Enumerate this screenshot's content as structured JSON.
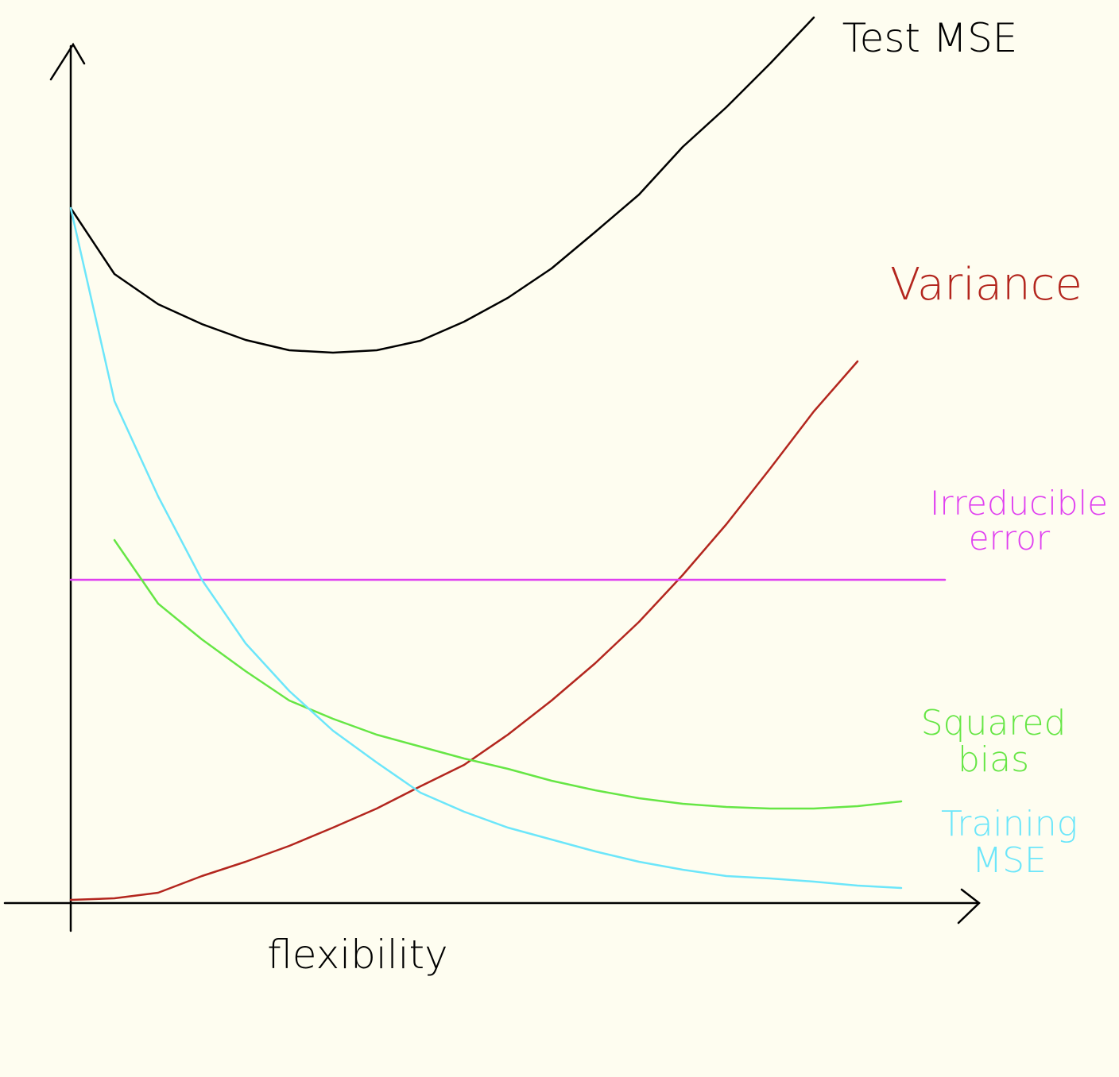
{
  "chart_data": {
    "type": "line",
    "x_label": "flexibility",
    "x": [
      0,
      0.5,
      1,
      1.5,
      2,
      2.5,
      3,
      3.5,
      4,
      4.5,
      5,
      5.5,
      6,
      6.5,
      7,
      7.5,
      8,
      8.5,
      9,
      9.5,
      10
    ],
    "xlim": [
      0,
      10
    ],
    "ylim": [
      0,
      112
    ],
    "series": [
      {
        "name": "Test MSE",
        "color": "#000000",
        "values": [
          87.5,
          79.2,
          75.4,
          72.9,
          70.9,
          69.6,
          69.3,
          69.6,
          70.8,
          73.2,
          76.2,
          79.9,
          84.5,
          89.2,
          95.2,
          100.2,
          105.7,
          111.5,
          null,
          null,
          null
        ]
      },
      {
        "name": "Variance",
        "color": "#b3261e",
        "values": [
          0.4,
          0.6,
          1.3,
          3.4,
          5.2,
          7.2,
          9.5,
          11.9,
          14.7,
          17.4,
          21.2,
          25.5,
          30.2,
          35.4,
          41.3,
          47.7,
          54.7,
          61.9,
          68.2,
          null,
          null
        ]
      },
      {
        "name": "Irreducible error",
        "color": "#e040f0",
        "values": [
          40.7,
          40.7,
          40.7,
          40.7,
          40.7,
          40.7,
          40.7,
          40.7,
          40.7,
          40.7,
          40.7,
          40.7,
          40.7,
          40.7,
          40.7,
          40.7,
          40.7,
          40.7,
          40.7,
          40.7,
          40.7
        ]
      },
      {
        "name": "Squared bias",
        "color": "#66e645",
        "values": [
          null,
          45.7,
          37.7,
          33.2,
          29.2,
          25.5,
          23.2,
          21.2,
          19.7,
          18.2,
          16.9,
          15.4,
          14.2,
          13.2,
          12.5,
          12.1,
          11.9,
          11.9,
          12.2,
          12.8,
          null
        ]
      },
      {
        "name": "Training MSE",
        "color": "#6ce6fa",
        "values": [
          87.5,
          63.2,
          51.2,
          40.7,
          32.7,
          26.7,
          21.7,
          17.7,
          13.9,
          11.5,
          9.5,
          8.0,
          6.5,
          5.2,
          4.2,
          3.4,
          3.1,
          2.7,
          2.2,
          1.9,
          null
        ]
      }
    ]
  }
}
